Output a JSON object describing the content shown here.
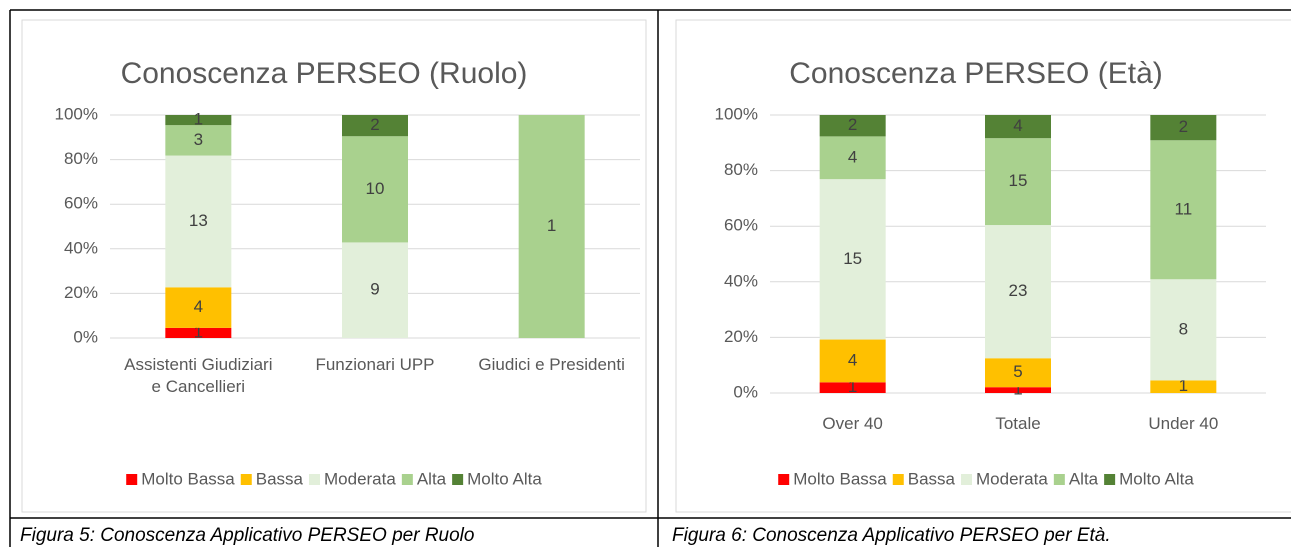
{
  "chart_data": [
    {
      "type": "bar",
      "stacking": "percent",
      "title": "Conoscenza PERSEO (Ruolo)",
      "caption": "Figura 5: Conoscenza Applicativo PERSEO per Ruolo",
      "categories": [
        "Assistenti Giudiziari e Cancellieri",
        "Funzionari UPP",
        "Giudici e Presidenti"
      ],
      "series": [
        {
          "name": "Molto Bassa",
          "color": "#ff0000",
          "values": [
            1,
            0,
            0
          ]
        },
        {
          "name": "Bassa",
          "color": "#ffc000",
          "values": [
            4,
            0,
            0
          ]
        },
        {
          "name": "Moderata",
          "color": "#e2efda",
          "values": [
            13,
            9,
            0
          ]
        },
        {
          "name": "Alta",
          "color": "#a9d18e",
          "values": [
            3,
            10,
            1
          ]
        },
        {
          "name": "Molto Alta",
          "color": "#548235",
          "values": [
            1,
            2,
            0
          ]
        }
      ],
      "ylim": [
        0,
        100
      ],
      "yticks": [
        {
          "value": 0,
          "label": "0%"
        },
        {
          "value": 20,
          "label": "20%"
        },
        {
          "value": 40,
          "label": "40%"
        },
        {
          "value": 60,
          "label": "60%"
        },
        {
          "value": 80,
          "label": "80%"
        },
        {
          "value": 100,
          "label": "100%"
        }
      ],
      "grid": true,
      "legend": "bottom"
    },
    {
      "type": "bar",
      "stacking": "percent",
      "title": "Conoscenza PERSEO (Età)",
      "caption": "Figura 6: Conoscenza Applicativo PERSEO per Età.",
      "categories": [
        "Over 40",
        "Totale",
        "Under 40"
      ],
      "series": [
        {
          "name": "Molto Bassa",
          "color": "#ff0000",
          "values": [
            1,
            1,
            0
          ]
        },
        {
          "name": "Bassa",
          "color": "#ffc000",
          "values": [
            4,
            5,
            1
          ]
        },
        {
          "name": "Moderata",
          "color": "#e2efda",
          "values": [
            15,
            23,
            8
          ]
        },
        {
          "name": "Alta",
          "color": "#a9d18e",
          "values": [
            4,
            15,
            11
          ]
        },
        {
          "name": "Molto Alta",
          "color": "#548235",
          "values": [
            2,
            4,
            2
          ]
        }
      ],
      "ylim": [
        0,
        100
      ],
      "yticks": [
        {
          "value": 0,
          "label": "0%"
        },
        {
          "value": 20,
          "label": "20%"
        },
        {
          "value": 40,
          "label": "40%"
        },
        {
          "value": 60,
          "label": "60%"
        },
        {
          "value": 80,
          "label": "80%"
        },
        {
          "value": 100,
          "label": "100%"
        }
      ],
      "grid": true,
      "legend": "bottom"
    }
  ]
}
